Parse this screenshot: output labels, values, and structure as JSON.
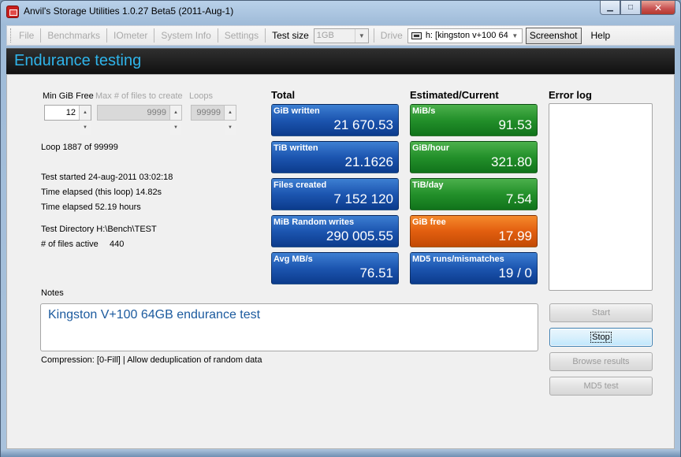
{
  "window": {
    "title": "Anvil's Storage Utilities 1.0.27 Beta5 (2011-Aug-1)",
    "minimize": "▁",
    "maximize": "□",
    "close": "✕"
  },
  "menu": {
    "file": "File",
    "benchmarks": "Benchmarks",
    "iometer": "IOmeter",
    "system_info": "System Info",
    "settings": "Settings",
    "test_size_label": "Test size",
    "test_size_value": "1GB",
    "drive_label": "Drive",
    "drive_value": "h: [kingston v+100 64",
    "screenshot": "Screenshot",
    "help": "Help"
  },
  "header": {
    "title": "Endurance testing"
  },
  "params": {
    "min_gib_free_label": "Min GiB Free",
    "min_gib_free_value": "12",
    "max_files_label": "Max # of files to create",
    "max_files_value": "9999",
    "loops_label": "Loops",
    "loops_value": "99999"
  },
  "status": {
    "loop": "Loop 1887 of 99999",
    "test_started": "Test started 24-aug-2011 03:02:18",
    "time_elapsed_loop": "Time elapsed (this loop) 14.82s",
    "time_elapsed": "Time elapsed 52.19 hours",
    "test_directory": "Test Directory H:\\Bench\\TEST",
    "files_active_label": "# of files active",
    "files_active_value": "440"
  },
  "totals": {
    "heading": "Total",
    "tiles": [
      {
        "label": "GiB written",
        "value": "21 670.53"
      },
      {
        "label": "TiB written",
        "value": "21.1626"
      },
      {
        "label": "Files created",
        "value": "7 152 120"
      },
      {
        "label": "MiB Random writes",
        "value": "290 005.55"
      },
      {
        "label": "Avg MB/s",
        "value": "76.51"
      }
    ]
  },
  "estimates": {
    "heading": "Estimated/Current",
    "tiles": [
      {
        "label": "MiB/s",
        "value": "91.53",
        "color": "#23902a"
      },
      {
        "label": "GiB/hour",
        "value": "321.80",
        "color": "#23902a"
      },
      {
        "label": "TiB/day",
        "value": "7.54",
        "color": "#23902a"
      },
      {
        "label": "GiB free",
        "value": "17.99",
        "color": "#e25e0f"
      },
      {
        "label": "MD5 runs/mismatches",
        "value": "19 / 0",
        "color": "#1c55b0"
      }
    ]
  },
  "error_log": {
    "heading": "Error log"
  },
  "notes": {
    "label": "Notes",
    "text": "Kingston V+100 64GB endurance test",
    "compression": "Compression: [0-Fill]  | Allow deduplication of random data"
  },
  "buttons": {
    "start": "Start",
    "stop": "Stop",
    "browse_results": "Browse results",
    "md5_test": "MD5 test"
  }
}
